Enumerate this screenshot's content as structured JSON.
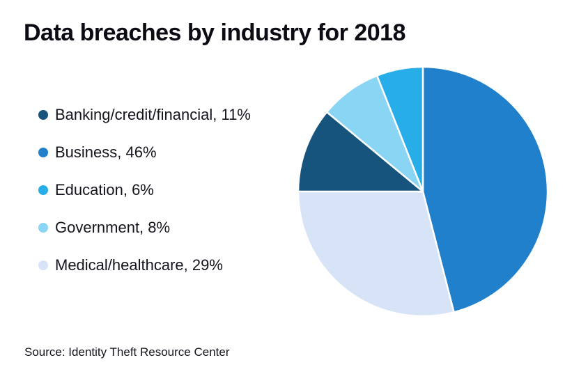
{
  "title": "Data breaches by industry for 2018",
  "source": "Source: Identity Theft Resource Center",
  "chart_data": {
    "type": "pie",
    "title": "Data breaches by industry for 2018",
    "legend_position": "left",
    "direction": "clockwise",
    "start_angle_deg": 0,
    "slices": [
      {
        "label": "Banking/credit/financial",
        "value": 11,
        "color": "#16537d",
        "display": "Banking/credit/financial, 11%"
      },
      {
        "label": "Business",
        "value": 46,
        "color": "#2080cc",
        "display": "Business, 46%"
      },
      {
        "label": "Education",
        "value": 6,
        "color": "#27ade8",
        "display": "Education, 6%"
      },
      {
        "label": "Government",
        "value": 8,
        "color": "#8ad4f4",
        "display": "Government, 8%"
      },
      {
        "label": "Medical/healthcare",
        "value": 29,
        "color": "#d7e3f6",
        "display": "Medical/healthcare, 29%"
      }
    ],
    "draw_order": [
      "Business",
      "Medical/healthcare",
      "Banking/credit/financial",
      "Government",
      "Education"
    ],
    "source": "Source: Identity Theft Resource Center"
  }
}
